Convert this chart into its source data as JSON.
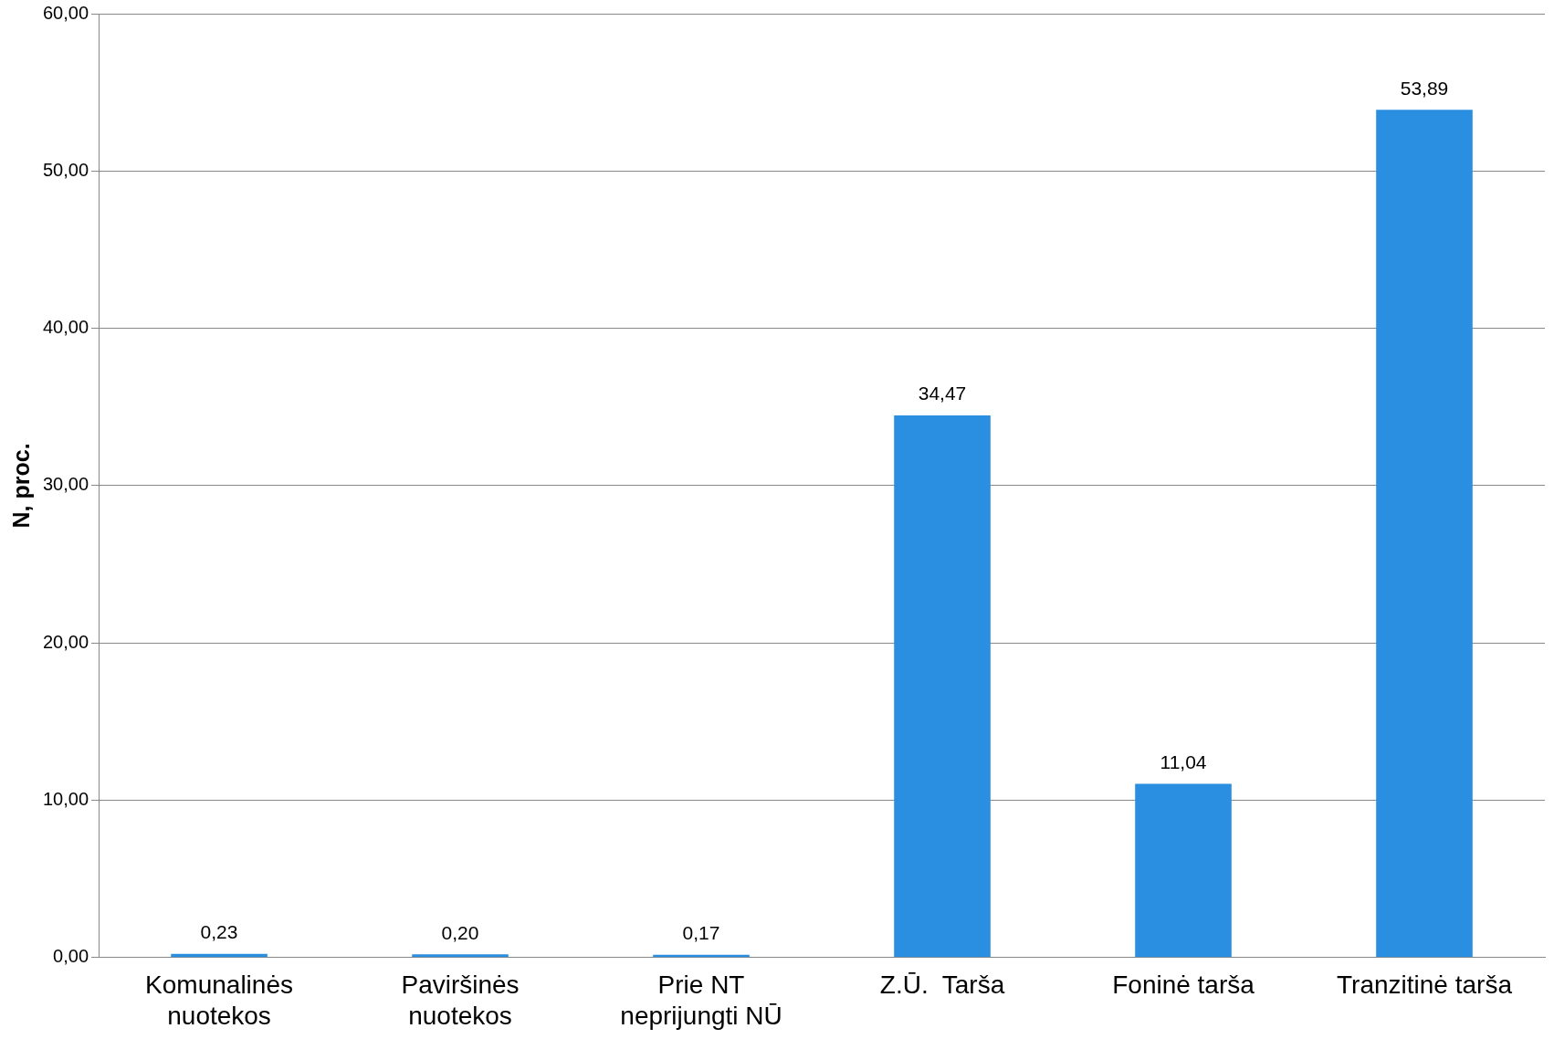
{
  "chart_data": {
    "type": "bar",
    "ylabel": "N, proc.",
    "categories": [
      "Komunalinės nuotekos",
      "Paviršinės nuotekos",
      "Prie NT neprijungti NŪ",
      "Z.Ū.  Tarša",
      "Foninė tarša",
      "Tranzitinė tarša"
    ],
    "values": [
      0.23,
      0.2,
      0.17,
      34.47,
      11.04,
      53.89
    ],
    "value_labels": [
      "0,23",
      "0,20",
      "0,17",
      "34,47",
      "11,04",
      "53,89"
    ],
    "color": "#2a8fe0",
    "ylim": [
      0,
      60
    ],
    "yticks": [
      {
        "value": 0,
        "label": "0,00"
      },
      {
        "value": 10,
        "label": "10,00"
      },
      {
        "value": 20,
        "label": "20,00"
      },
      {
        "value": 30,
        "label": "30,00"
      },
      {
        "value": 40,
        "label": "40,00"
      },
      {
        "value": 50,
        "label": "50,00"
      },
      {
        "value": 60,
        "label": "60,00"
      }
    ],
    "grid": "y",
    "legend": false
  }
}
